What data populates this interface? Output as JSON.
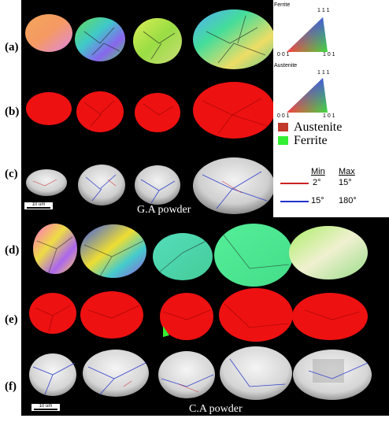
{
  "rows_top": [
    {
      "label": "(a)",
      "map": "ipf"
    },
    {
      "label": "(b)",
      "map": "phase"
    },
    {
      "label": "(c)",
      "map": "band-contrast"
    }
  ],
  "rows_bottom": [
    {
      "label": "(d)",
      "map": "ipf"
    },
    {
      "label": "(e)",
      "map": "phase"
    },
    {
      "label": "(f)",
      "map": "band-contrast"
    }
  ],
  "top_caption": "G.A powder",
  "bottom_caption": "C.A powder",
  "scale_bar_label": "10 um",
  "ipf_legends": [
    {
      "title": "Ferrite",
      "top": "1 1 1",
      "left": "0 0 1",
      "right": "1 0 1"
    },
    {
      "title": "Austenite",
      "top": "1 1 1",
      "left": "0 0 1",
      "right": "1 0 1"
    }
  ],
  "phase_legend": [
    {
      "label": "Austenite",
      "color": "#c0392b"
    },
    {
      "label": "Ferrite",
      "color": "#33ee33"
    }
  ],
  "misorientation": {
    "col_min": "Min",
    "col_max": "Max",
    "rows": [
      {
        "min": "2°",
        "max": "15°",
        "color": "#cc2222"
      },
      {
        "min": "15°",
        "max": "180°",
        "color": "#2233cc"
      }
    ]
  }
}
